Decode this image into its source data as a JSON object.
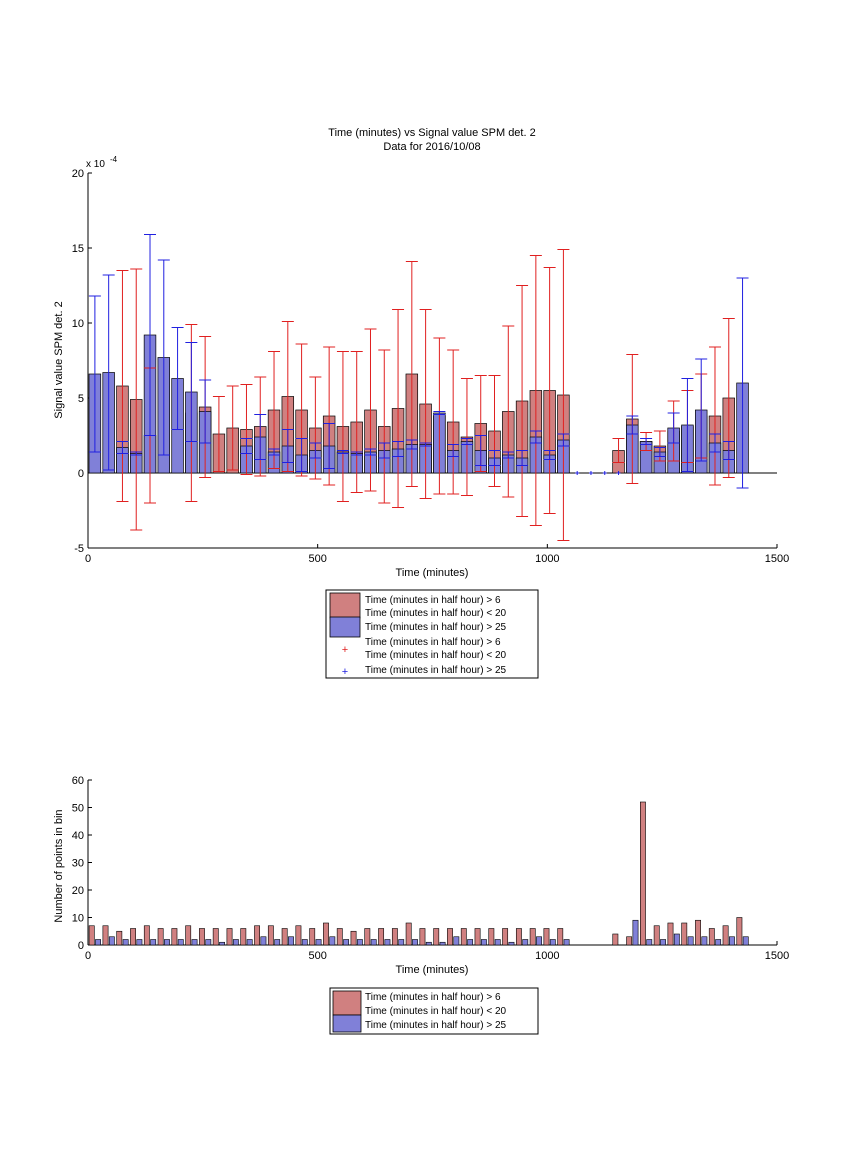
{
  "colors": {
    "red_bar": "#d08080",
    "blue_bar": "#8080d8",
    "red_err": "#e02020",
    "blue_err": "#2020e0"
  },
  "chart_data": [
    {
      "type": "bar",
      "title": "Time (minutes) vs Signal value SPM det. 2",
      "subtitle": "Data for 2016/10/08",
      "xlabel": "Time (minutes)",
      "ylabel": "Signal value SPM det. 2",
      "yexponent_base": "x 10",
      "yexponent_power": "-4",
      "xlim": [
        0,
        1500
      ],
      "ylim": [
        -5,
        20
      ],
      "xticks": [
        "0",
        "500",
        "1000",
        "1500"
      ],
      "yticks": [
        "-5",
        "0",
        "5",
        "10",
        "15",
        "20"
      ],
      "legend": {
        "placement": "below",
        "entries": [
          {
            "line1": "Time (minutes in half hour) > 6",
            "line2": "Time (minutes in half hour) < 20"
          },
          {
            "line1": "Time (minutes in half hour) > 25"
          },
          {
            "line1": "Time (minutes in half hour) > 6",
            "line2": "Time (minutes in half hour) < 20"
          },
          {
            "line1": "Time (minutes in half hour) > 25"
          }
        ]
      },
      "series": [
        {
          "x": [
            15,
            75,
            105,
            135,
            165,
            195,
            225,
            255,
            285,
            315,
            345,
            375,
            405,
            435,
            465,
            495,
            525,
            555,
            585,
            615,
            645,
            675,
            705,
            735,
            765,
            795,
            825,
            855,
            885,
            915,
            945,
            975,
            1005,
            1035,
            1065,
            1095,
            1125,
            1155,
            1185,
            1215,
            1245,
            1275,
            1305,
            1335,
            1365,
            1395,
            1425
          ],
          "values": [
            null,
            5.8,
            4.9,
            2.5,
            null,
            null,
            4.0,
            4.4,
            2.6,
            3.0,
            2.9,
            3.1,
            4.2,
            5.1,
            4.2,
            3.0,
            3.8,
            3.1,
            3.4,
            4.2,
            3.1,
            4.3,
            6.6,
            4.6,
            3.8,
            3.4,
            2.4,
            3.3,
            2.8,
            4.1,
            4.8,
            5.5,
            5.5,
            5.2,
            null,
            null,
            null,
            1.5,
            3.6,
            2.1,
            1.8,
            2.8,
            3.1,
            3.8,
            3.8,
            5.0,
            null
          ],
          "err": [
            null,
            7.7,
            8.7,
            4.5,
            null,
            null,
            5.9,
            4.7,
            2.5,
            2.8,
            3.0,
            3.3,
            3.9,
            5.0,
            4.4,
            3.4,
            4.6,
            5.0,
            4.7,
            5.4,
            5.1,
            6.6,
            7.5,
            6.3,
            5.2,
            4.8,
            3.9,
            3.2,
            3.7,
            5.7,
            7.7,
            9.0,
            8.2,
            9.7,
            null,
            null,
            null,
            0.8,
            4.3,
            0.6,
            1.0,
            2.0,
            2.4,
            2.8,
            4.6,
            5.3,
            null
          ]
        },
        {
          "x": [
            15,
            45,
            75,
            105,
            135,
            165,
            195,
            225,
            255,
            345,
            375,
            405,
            435,
            465,
            495,
            525,
            555,
            585,
            615,
            645,
            675,
            705,
            735,
            765,
            795,
            825,
            855,
            885,
            915,
            945,
            975,
            1005,
            1035,
            1065,
            1095,
            1125,
            1155,
            1185,
            1215,
            1245,
            1275,
            1305,
            1335,
            1365,
            1395,
            1425
          ],
          "values": [
            6.6,
            6.7,
            1.7,
            1.3,
            9.2,
            7.7,
            6.3,
            5.4,
            4.1,
            1.8,
            2.4,
            1.4,
            1.8,
            1.2,
            1.5,
            1.8,
            1.4,
            1.3,
            1.4,
            1.5,
            1.6,
            1.9,
            1.9,
            4.0,
            1.5,
            2.1,
            1.5,
            1.0,
            1.2,
            1.0,
            2.4,
            1.2,
            2.2,
            0,
            0,
            0,
            0,
            3.2,
            2.1,
            1.4,
            3.0,
            3.2,
            4.2,
            2.0,
            1.5,
            6.0
          ]
        }
      ],
      "blue_err": [
        5.2,
        6.5,
        0.4,
        0.1,
        6.7,
        6.5,
        3.4,
        3.3,
        2.1,
        0.5,
        1.5,
        0.2,
        1.1,
        1.1,
        0.5,
        1.5,
        0.1,
        0.1,
        0.2,
        0.5,
        0.5,
        0.3,
        0.1,
        0.1,
        0.4,
        0.2,
        1.0,
        0.5,
        0.2,
        0.5,
        0.4,
        0.3,
        0.4,
        0,
        0,
        0,
        0,
        0.6,
        0.2,
        0.3,
        1.0,
        3.1,
        3.4,
        0.6,
        0.6,
        7.0
      ]
    },
    {
      "type": "bar",
      "xlabel": "Time (minutes)",
      "ylabel": "Number of points in bin",
      "xlim": [
        0,
        1500
      ],
      "ylim": [
        0,
        60
      ],
      "xticks": [
        "0",
        "500",
        "1000",
        "1500"
      ],
      "yticks": [
        "0",
        "10",
        "20",
        "30",
        "40",
        "50",
        "60"
      ],
      "legend": {
        "placement": "below",
        "entries": [
          {
            "line1": "Time (minutes in half hour) > 6",
            "line2": "Time (minutes in half hour) < 20"
          },
          {
            "line1": "Time (minutes in half hour) > 25"
          }
        ]
      },
      "series": [
        {
          "x": [
            15,
            45,
            75,
            105,
            135,
            165,
            195,
            225,
            255,
            285,
            315,
            345,
            375,
            405,
            435,
            465,
            495,
            525,
            555,
            585,
            615,
            645,
            675,
            705,
            735,
            765,
            795,
            825,
            855,
            885,
            915,
            945,
            975,
            1005,
            1035,
            1155,
            1185,
            1215,
            1245,
            1275,
            1305,
            1335,
            1365,
            1395,
            1425
          ],
          "values": [
            7,
            7,
            5,
            6,
            7,
            6,
            6,
            7,
            6,
            6,
            6,
            6,
            7,
            7,
            6,
            7,
            6,
            8,
            6,
            5,
            6,
            6,
            6,
            8,
            6,
            6,
            6,
            6,
            6,
            6,
            6,
            6,
            6,
            6,
            6,
            4,
            3,
            52,
            7,
            8,
            8,
            9,
            6,
            7,
            10
          ]
        },
        {
          "x": [
            15,
            45,
            75,
            105,
            135,
            165,
            195,
            225,
            255,
            285,
            315,
            345,
            375,
            405,
            435,
            465,
            495,
            525,
            555,
            585,
            615,
            645,
            675,
            705,
            735,
            765,
            795,
            825,
            855,
            885,
            915,
            945,
            975,
            1005,
            1035,
            1185,
            1215,
            1245,
            1275,
            1305,
            1335,
            1365,
            1395,
            1425
          ],
          "values": [
            2,
            3,
            2,
            2,
            2,
            2,
            2,
            2,
            2,
            1,
            2,
            2,
            3,
            2,
            3,
            2,
            2,
            3,
            2,
            2,
            2,
            2,
            2,
            2,
            1,
            1,
            3,
            2,
            2,
            2,
            1,
            2,
            3,
            2,
            2,
            9,
            2,
            2,
            4,
            3,
            3,
            2,
            3,
            3
          ]
        }
      ]
    }
  ]
}
